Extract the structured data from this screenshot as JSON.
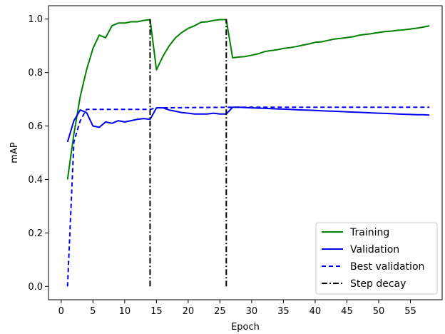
{
  "chart_data": {
    "type": "line",
    "title": "",
    "xlabel": "Epoch",
    "ylabel": "mAP",
    "xlim": [
      -2,
      60
    ],
    "ylim": [
      -0.05,
      1.05
    ],
    "xticks": [
      0,
      5,
      10,
      15,
      20,
      25,
      30,
      35,
      40,
      45,
      50,
      55
    ],
    "yticks": [
      0.0,
      0.2,
      0.4,
      0.6,
      0.8,
      1.0
    ],
    "grid": false,
    "legend_position": "bottom-right",
    "series": [
      {
        "name": "Training",
        "color": "#008000",
        "style": "solid",
        "x": [
          1,
          2,
          3,
          4,
          5,
          6,
          7,
          8,
          9,
          10,
          11,
          12,
          13,
          14,
          15,
          16,
          17,
          18,
          19,
          20,
          21,
          22,
          23,
          24,
          25,
          26,
          27,
          28,
          29,
          30,
          31,
          32,
          33,
          34,
          35,
          36,
          37,
          38,
          39,
          40,
          41,
          42,
          43,
          44,
          45,
          46,
          47,
          48,
          49,
          50,
          51,
          52,
          53,
          54,
          55,
          56,
          57,
          58
        ],
        "y": [
          0.4,
          0.57,
          0.71,
          0.81,
          0.89,
          0.94,
          0.93,
          0.975,
          0.985,
          0.985,
          0.99,
          0.99,
          0.995,
          0.998,
          0.81,
          0.86,
          0.9,
          0.93,
          0.95,
          0.965,
          0.975,
          0.988,
          0.99,
          0.995,
          0.998,
          0.998,
          0.855,
          0.858,
          0.86,
          0.865,
          0.87,
          0.878,
          0.882,
          0.885,
          0.89,
          0.893,
          0.897,
          0.902,
          0.907,
          0.913,
          0.915,
          0.92,
          0.925,
          0.928,
          0.931,
          0.934,
          0.94,
          0.943,
          0.946,
          0.95,
          0.953,
          0.955,
          0.958,
          0.96,
          0.963,
          0.966,
          0.97,
          0.975
        ]
      },
      {
        "name": "Validation",
        "color": "#0000ee",
        "style": "solid",
        "x": [
          1,
          2,
          3,
          4,
          5,
          6,
          7,
          8,
          9,
          10,
          11,
          12,
          13,
          14,
          15,
          16,
          17,
          18,
          19,
          20,
          21,
          22,
          23,
          24,
          25,
          26,
          27,
          28,
          29,
          30,
          31,
          32,
          33,
          34,
          35,
          36,
          37,
          38,
          39,
          40,
          41,
          42,
          43,
          44,
          45,
          46,
          47,
          48,
          49,
          50,
          51,
          52,
          53,
          54,
          55,
          56,
          57,
          58
        ],
        "y": [
          0.54,
          0.62,
          0.66,
          0.65,
          0.6,
          0.595,
          0.615,
          0.61,
          0.62,
          0.615,
          0.62,
          0.625,
          0.628,
          0.625,
          0.668,
          0.668,
          0.66,
          0.655,
          0.65,
          0.648,
          0.645,
          0.645,
          0.645,
          0.648,
          0.645,
          0.645,
          0.67,
          0.67,
          0.669,
          0.668,
          0.667,
          0.666,
          0.665,
          0.664,
          0.663,
          0.662,
          0.661,
          0.66,
          0.659,
          0.658,
          0.657,
          0.656,
          0.655,
          0.654,
          0.653,
          0.652,
          0.651,
          0.65,
          0.649,
          0.648,
          0.647,
          0.646,
          0.645,
          0.644,
          0.643,
          0.642,
          0.642,
          0.641
        ]
      },
      {
        "name": "Best validation",
        "color": "#0000ee",
        "style": "dashed",
        "x": [
          1,
          2,
          3,
          4,
          14,
          15,
          27,
          58
        ],
        "y": [
          0.0,
          0.54,
          0.62,
          0.662,
          0.662,
          0.668,
          0.67,
          0.67
        ]
      },
      {
        "name": "Step decay",
        "color": "#000000",
        "style": "dashdot",
        "segments": [
          {
            "x": 14,
            "y0": 0.0,
            "y1": 1.0
          },
          {
            "x": 26,
            "y0": 0.0,
            "y1": 1.0
          }
        ]
      }
    ]
  }
}
